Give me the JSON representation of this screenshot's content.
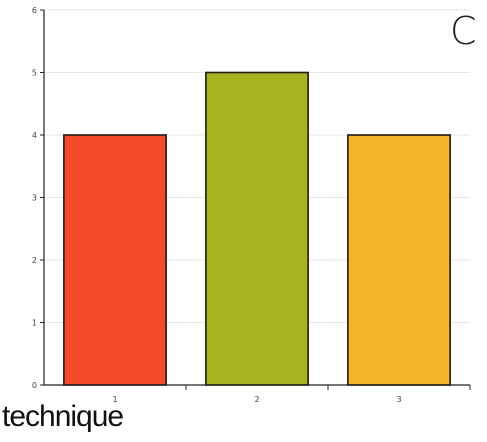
{
  "panel_label": "C",
  "footer": {
    "text": "technique"
  },
  "chart_data": {
    "type": "bar",
    "categories": [
      "1",
      "2",
      "3"
    ],
    "values": [
      4,
      5,
      4
    ],
    "colors": [
      "#f4492a",
      "#a6b51f",
      "#f4b42b"
    ],
    "bar_outline_color": "#1f1a12",
    "title": "",
    "xlabel": "",
    "ylabel": "",
    "ylim": [
      0,
      6
    ],
    "yticks": [
      0,
      1,
      2,
      3,
      4,
      5,
      6
    ],
    "grid": true,
    "grid_color": "#e6e6e6"
  }
}
